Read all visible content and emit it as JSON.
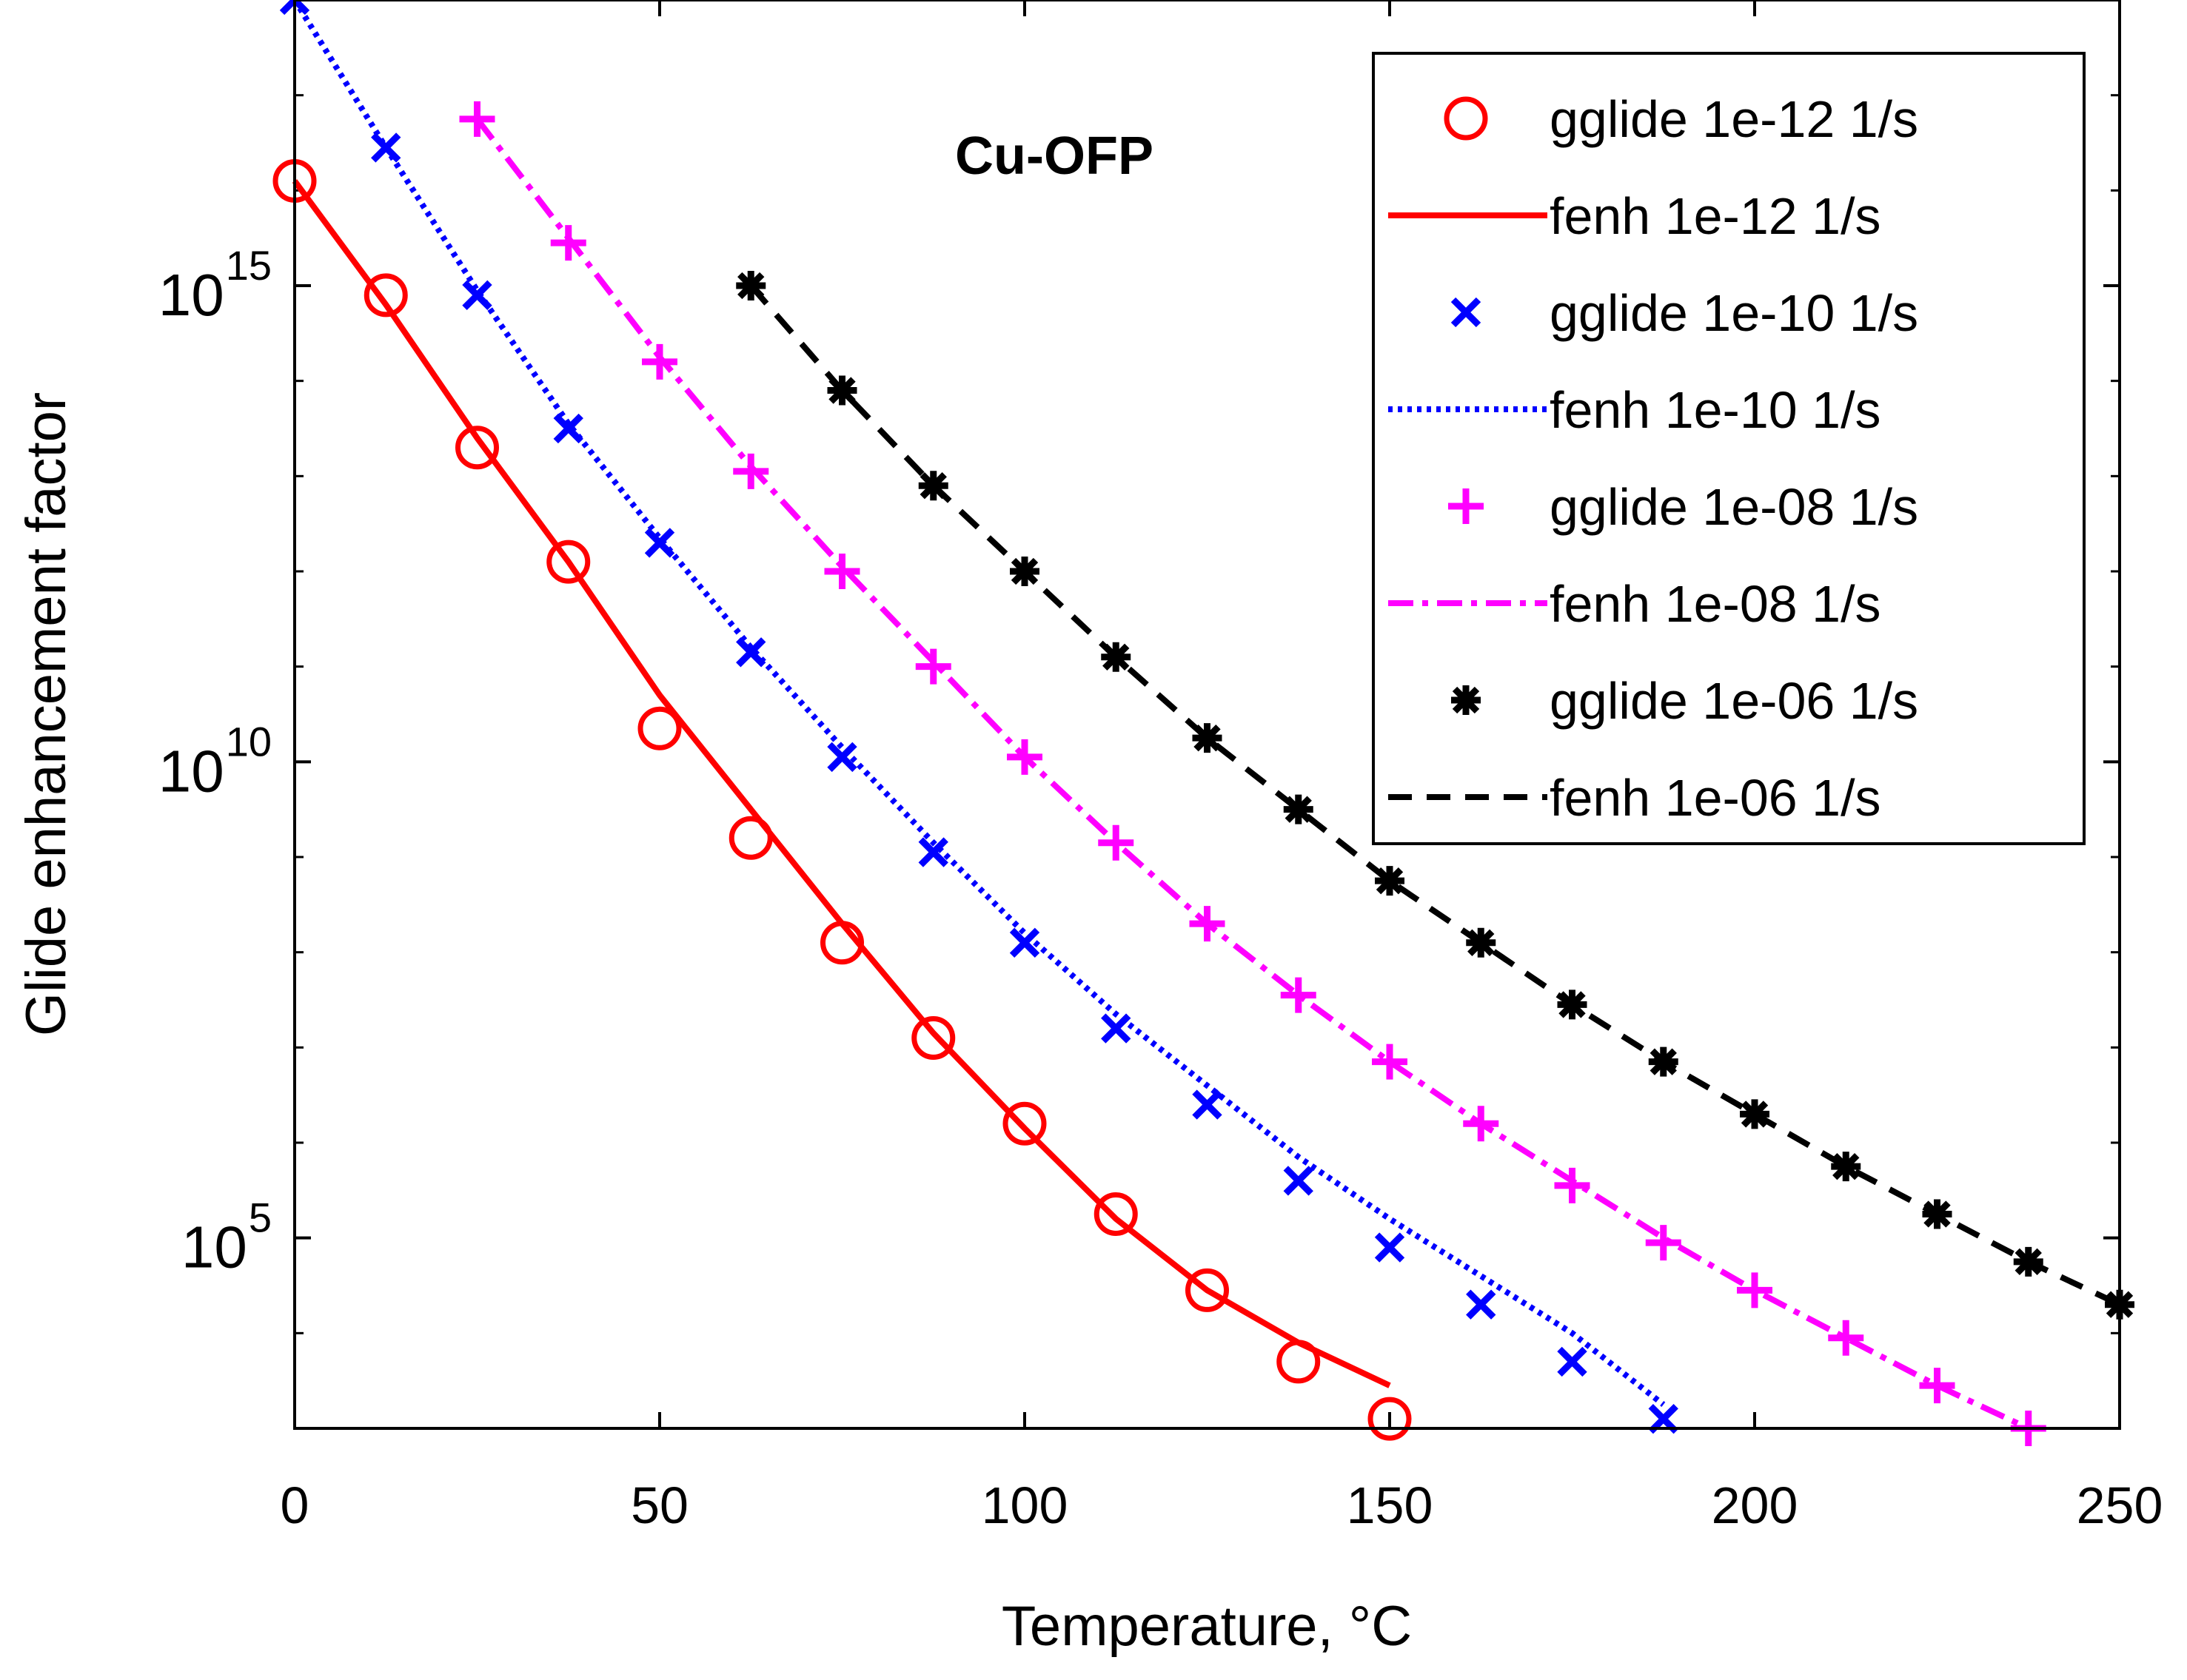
{
  "chart_data": {
    "type": "line",
    "annotation": "Cu-OFP",
    "xlabel": "Temperature, °C",
    "ylabel": "Glide enhancement factor",
    "xlim": [
      0,
      250
    ],
    "ylim_log10": [
      3,
      18
    ],
    "yscale": "log",
    "xticks": [
      0,
      50,
      100,
      150,
      200,
      250
    ],
    "xtick_labels": [
      "0",
      "50",
      "100",
      "150",
      "200",
      "250"
    ],
    "yticks": [
      {
        "value": 5,
        "base": "10",
        "exp": "5"
      },
      {
        "value": 10,
        "base": "10",
        "exp": "10"
      },
      {
        "value": 15,
        "base": "10",
        "exp": "15"
      }
    ],
    "grid": false,
    "legend_position": "top-right",
    "series": [
      {
        "name": "gglide 1e-12 1/s",
        "kind": "marker",
        "marker": "circle",
        "color": "#ff0000",
        "x": [
          0,
          12.5,
          25,
          37.5,
          50,
          62.5,
          75,
          87.5,
          100,
          112.5,
          125,
          137.5,
          150
        ],
        "y_log10": [
          16.1,
          14.9,
          13.3,
          12.1,
          10.35,
          9.2,
          8.1,
          7.1,
          6.2,
          5.25,
          4.45,
          3.7,
          3.1
        ]
      },
      {
        "name": "fenh 1e-12 1/s",
        "kind": "line",
        "dash": "solid",
        "color": "#ff0000",
        "x": [
          0,
          12.5,
          25,
          37.5,
          50,
          62.5,
          75,
          87.5,
          100,
          112.5,
          125,
          137.5,
          150
        ],
        "y_log10": [
          16.1,
          14.8,
          13.4,
          12.1,
          10.7,
          9.5,
          8.3,
          7.15,
          6.15,
          5.2,
          4.45,
          3.9,
          3.45
        ]
      },
      {
        "name": "gglide 1e-10 1/s",
        "kind": "marker",
        "marker": "x",
        "color": "#0000ff",
        "x": [
          0,
          12.5,
          25,
          37.5,
          50,
          62.5,
          75,
          87.5,
          100,
          112.5,
          125,
          137.5,
          150,
          162.5,
          175,
          187.5
        ],
        "y_log10": [
          18.0,
          16.45,
          14.9,
          13.5,
          12.3,
          11.15,
          10.05,
          9.05,
          8.1,
          7.2,
          6.4,
          5.6,
          4.9,
          4.3,
          3.7,
          3.1
        ]
      },
      {
        "name": "fenh 1e-10 1/s",
        "kind": "line",
        "dash": "dotted",
        "color": "#0000ff",
        "x": [
          0,
          12.5,
          25,
          37.5,
          50,
          62.5,
          75,
          87.5,
          100,
          112.5,
          125,
          137.5,
          150,
          162.5,
          175,
          187.5
        ],
        "y_log10": [
          18.0,
          16.45,
          14.95,
          13.55,
          12.35,
          11.2,
          10.15,
          9.15,
          8.2,
          7.35,
          6.6,
          5.85,
          5.2,
          4.6,
          4.0,
          3.25
        ]
      },
      {
        "name": "gglide 1e-08 1/s",
        "kind": "marker",
        "marker": "plus",
        "color": "#ff00ff",
        "x": [
          25,
          37.5,
          50,
          62.5,
          75,
          87.5,
          100,
          112.5,
          125,
          137.5,
          150,
          162.5,
          175,
          187.5,
          200,
          212.5,
          225,
          237.5
        ],
        "y_log10": [
          16.75,
          15.45,
          14.2,
          13.05,
          12.0,
          11.0,
          10.05,
          9.15,
          8.3,
          7.55,
          6.85,
          6.2,
          5.55,
          4.95,
          4.45,
          3.95,
          3.45,
          3.0
        ]
      },
      {
        "name": "fenh 1e-08 1/s",
        "kind": "line",
        "dash": "dashdot",
        "color": "#ff00ff",
        "x": [
          25,
          37.5,
          50,
          62.5,
          75,
          87.5,
          100,
          112.5,
          125,
          137.5,
          150,
          162.5,
          175,
          187.5,
          200,
          212.5,
          225,
          237.5
        ],
        "y_log10": [
          16.75,
          15.5,
          14.25,
          13.1,
          12.05,
          11.05,
          10.05,
          9.15,
          8.3,
          7.55,
          6.85,
          6.2,
          5.6,
          5.0,
          4.45,
          3.95,
          3.45,
          3.0
        ]
      },
      {
        "name": "gglide 1e-06 1/s",
        "kind": "marker",
        "marker": "star",
        "color": "#000000",
        "x": [
          62.5,
          75,
          87.5,
          100,
          112.5,
          125,
          137.5,
          150,
          162.5,
          175,
          187.5,
          200,
          212.5,
          225,
          237.5,
          250
        ],
        "y_log10": [
          15.0,
          13.9,
          12.9,
          12.0,
          11.1,
          10.25,
          9.5,
          8.75,
          8.1,
          7.45,
          6.85,
          6.3,
          5.75,
          5.25,
          4.75,
          4.3
        ]
      },
      {
        "name": "fenh 1e-06 1/s",
        "kind": "line",
        "dash": "dashed",
        "color": "#000000",
        "x": [
          62.5,
          75,
          87.5,
          100,
          112.5,
          125,
          137.5,
          150,
          162.5,
          175,
          187.5,
          200,
          212.5,
          225,
          237.5,
          250
        ],
        "y_log10": [
          15.0,
          13.9,
          12.9,
          12.0,
          11.1,
          10.25,
          9.5,
          8.75,
          8.1,
          7.45,
          6.85,
          6.3,
          5.75,
          5.25,
          4.75,
          4.3
        ]
      }
    ]
  }
}
